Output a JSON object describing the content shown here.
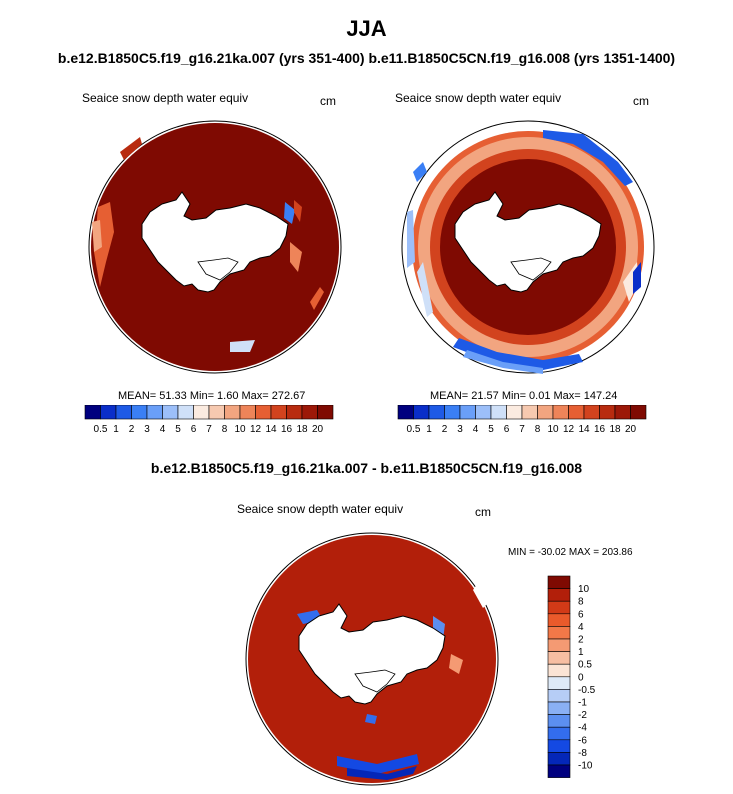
{
  "figure": {
    "season": "JJA",
    "subtitle": "b.e12.B1850C5.f19_g16.21ka.007 (yrs 351-400) b.e11.B1850C5CN.f19_g16.008 (yrs 1351-1400)",
    "diff_title": "b.e12.B1850C5.f19_g16.21ka.007 - b.e11.B1850C5CN.f19_g16.008"
  },
  "panels": [
    {
      "title": "Seaice snow depth water equiv",
      "units": "cm",
      "stats": "MEAN=  51.33  Min=   1.60  Max= 272.67"
    },
    {
      "title": "Seaice snow depth water equiv",
      "units": "cm",
      "stats": "MEAN=  21.57  Min=   0.01  Max= 147.24"
    },
    {
      "title": "Seaice snow depth water equiv",
      "units": "cm",
      "stats": "MIN = -30.02 MAX = 203.86"
    }
  ],
  "colors": {
    "abs_scale": [
      "#00007f",
      "#0a2ec9",
      "#1e5ae6",
      "#3a7ff5",
      "#6a9ff8",
      "#9cbff9",
      "#cfe0f8",
      "#fbebe0",
      "#f6c9b0",
      "#f2a580",
      "#ee8459",
      "#e65f33",
      "#d2431e",
      "#b82b0f",
      "#9c1808",
      "#7f0a02"
    ],
    "diff_scale": [
      "#7f0a02",
      "#b21f0a",
      "#d23a17",
      "#ea5a2b",
      "#f27848",
      "#f49a73",
      "#f7bea2",
      "#fbe4d5",
      "#deeaf8",
      "#b6cdf6",
      "#8ab0f4",
      "#5c8ff0",
      "#336ded",
      "#1449e3",
      "#0427b8",
      "#00007f"
    ]
  },
  "chart_data": [
    {
      "type": "heatmap",
      "projection": "south-polar-stereographic",
      "title": "Seaice snow depth water equiv",
      "units": "cm",
      "colorbar_ticks": [
        "0.5",
        "1",
        "2",
        "3",
        "4",
        "5",
        "6",
        "7",
        "8",
        "10",
        "12",
        "14",
        "16",
        "18",
        "20"
      ],
      "mean": 51.33,
      "min": 1.6,
      "max": 272.67
    },
    {
      "type": "heatmap",
      "projection": "south-polar-stereographic",
      "title": "Seaice snow depth water equiv",
      "units": "cm",
      "colorbar_ticks": [
        "0.5",
        "1",
        "2",
        "3",
        "4",
        "5",
        "6",
        "7",
        "8",
        "10",
        "12",
        "14",
        "16",
        "18",
        "20"
      ],
      "mean": 21.57,
      "min": 0.01,
      "max": 147.24
    },
    {
      "type": "heatmap",
      "projection": "south-polar-stereographic",
      "title": "Seaice snow depth water equiv",
      "units": "cm",
      "colorbar_ticks": [
        "10",
        "8",
        "6",
        "4",
        "2",
        "1",
        "0.5",
        "0",
        "-0.5",
        "-1",
        "-2",
        "-4",
        "-6",
        "-8",
        "-10"
      ],
      "min": -30.02,
      "max": 203.86
    }
  ]
}
